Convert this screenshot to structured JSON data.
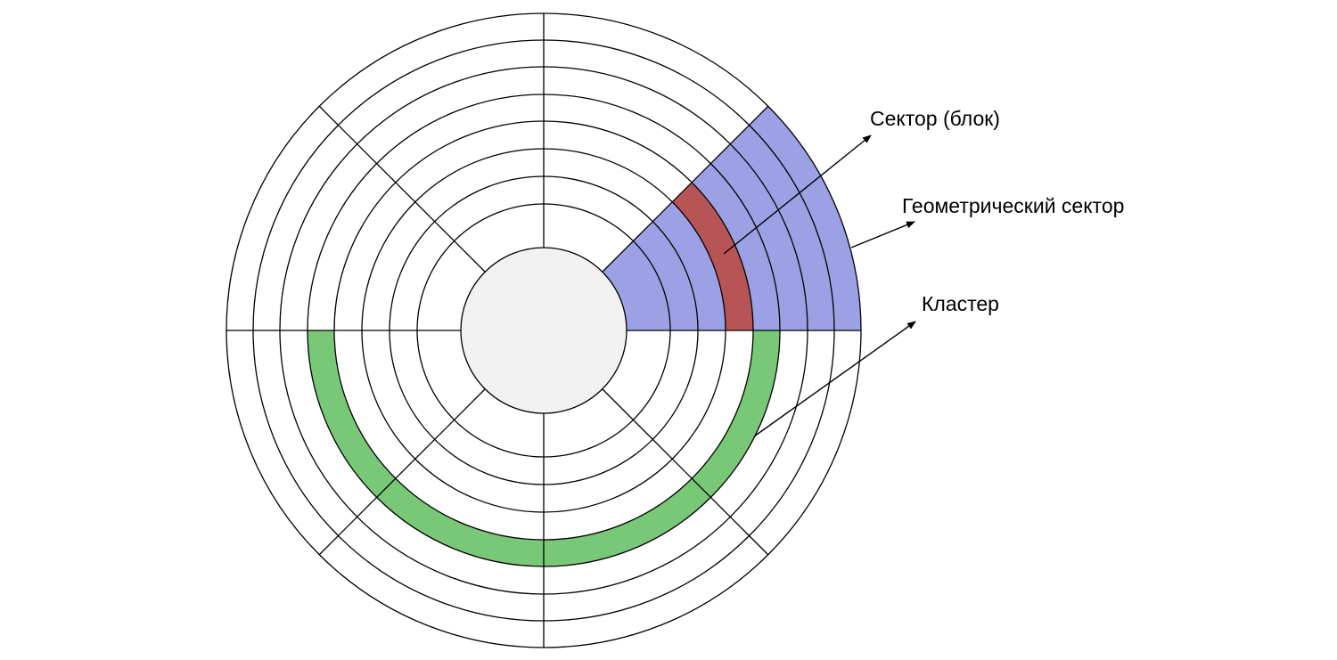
{
  "labels": {
    "sector_block": "Сектор (блок)",
    "geometric_sector": "Геометрический сектор",
    "cluster": "Кластер"
  },
  "colors": {
    "geometric_sector_fill": "#9ca1e6",
    "sector_block_fill": "#b75556",
    "cluster_fill": "#78c878",
    "hub_fill": "#f1f1f1",
    "line": "#000000"
  }
}
